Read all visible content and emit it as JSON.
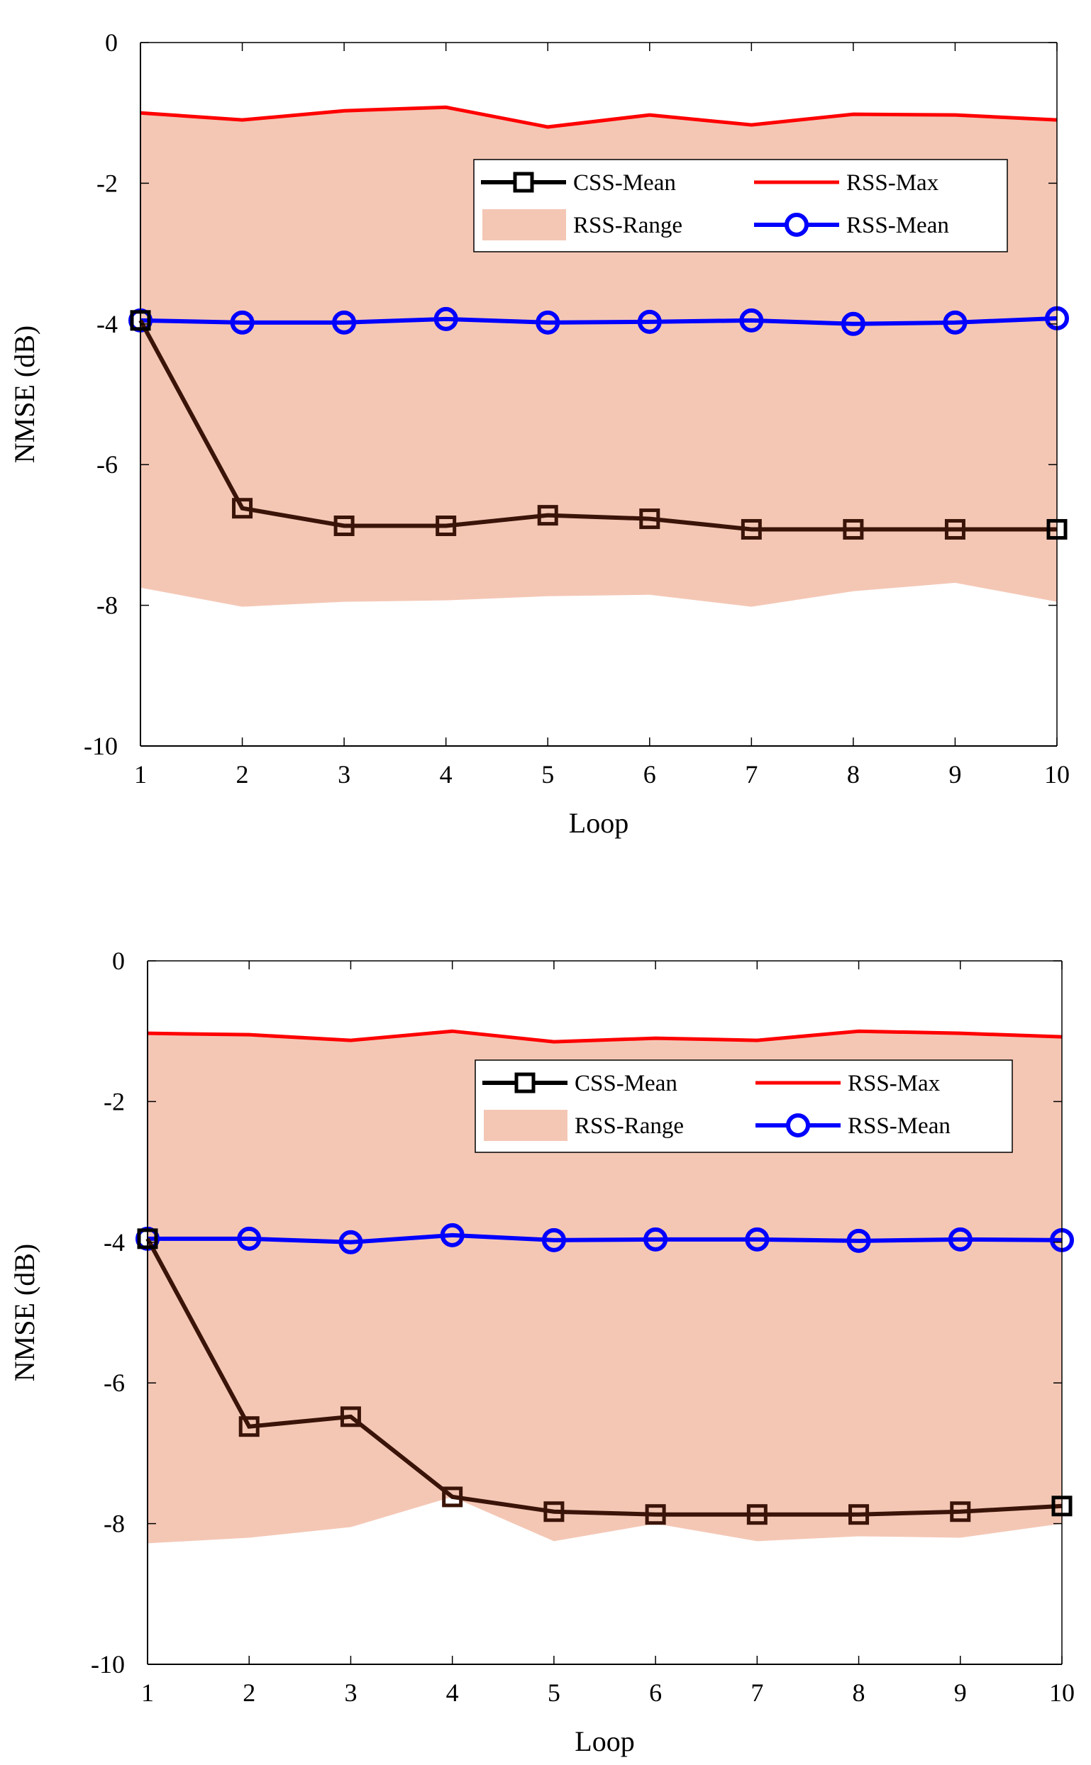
{
  "colors": {
    "range_fill": "#f4c7b5",
    "max_line": "#ff0000",
    "rss_mean": "#0000ff",
    "css_mean": "#3a1408",
    "axis": "#000000"
  },
  "chart_data": [
    {
      "type": "line",
      "xlabel": "Loop",
      "ylabel": "NMSE (dB)",
      "xlim": [
        1,
        10
      ],
      "ylim": [
        -10,
        0
      ],
      "xticks": [
        "1",
        "2",
        "3",
        "4",
        "5",
        "6",
        "7",
        "8",
        "9",
        "10"
      ],
      "yticks": [
        "0",
        "-2",
        "-4",
        "-6",
        "-8",
        "-10"
      ],
      "x": [
        1,
        2,
        3,
        4,
        5,
        6,
        7,
        8,
        9,
        10
      ],
      "legend": {
        "css_mean": "CSS-Mean",
        "rss_max": "RSS-Max",
        "rss_range": "RSS-Range",
        "rss_mean": "RSS-Mean"
      },
      "series": [
        {
          "name": "RSS-Max",
          "key": "rss_max",
          "values": [
            -1.0,
            -1.1,
            -0.97,
            -0.92,
            -1.2,
            -1.03,
            -1.17,
            -1.02,
            -1.03,
            -1.1
          ]
        },
        {
          "name": "RSS-Min",
          "key": "rss_min",
          "values": [
            -7.75,
            -8.02,
            -7.95,
            -7.93,
            -7.87,
            -7.85,
            -8.02,
            -7.8,
            -7.68,
            -7.95
          ]
        },
        {
          "name": "RSS-Mean",
          "key": "rss_mean",
          "values": [
            -3.95,
            -3.98,
            -3.98,
            -3.93,
            -3.98,
            -3.97,
            -3.95,
            -4.0,
            -3.98,
            -3.92
          ]
        },
        {
          "name": "CSS-Mean",
          "key": "css_mean",
          "values": [
            -3.95,
            -6.62,
            -6.87,
            -6.87,
            -6.72,
            -6.77,
            -6.92,
            -6.92,
            -6.92,
            -6.92
          ]
        }
      ]
    },
    {
      "type": "line",
      "xlabel": "Loop",
      "ylabel": "NMSE (dB)",
      "xlim": [
        1,
        10
      ],
      "ylim": [
        -10,
        0
      ],
      "xticks": [
        "1",
        "2",
        "3",
        "4",
        "5",
        "6",
        "7",
        "8",
        "9",
        "10"
      ],
      "yticks": [
        "0",
        "-2",
        "-4",
        "-6",
        "-8",
        "-10"
      ],
      "x": [
        1,
        2,
        3,
        4,
        5,
        6,
        7,
        8,
        9,
        10
      ],
      "legend": {
        "css_mean": "CSS-Mean",
        "rss_max": "RSS-Max",
        "rss_range": "RSS-Range",
        "rss_mean": "RSS-Mean"
      },
      "series": [
        {
          "name": "RSS-Max",
          "key": "rss_max",
          "values": [
            -1.03,
            -1.05,
            -1.13,
            -1.0,
            -1.15,
            -1.1,
            -1.13,
            -1.0,
            -1.03,
            -1.08
          ]
        },
        {
          "name": "RSS-Min",
          "key": "rss_min",
          "values": [
            -8.28,
            -8.2,
            -8.05,
            -7.62,
            -8.25,
            -8.0,
            -8.25,
            -8.18,
            -8.2,
            -8.0
          ]
        },
        {
          "name": "RSS-Mean",
          "key": "rss_mean",
          "values": [
            -3.95,
            -3.95,
            -4.0,
            -3.9,
            -3.97,
            -3.96,
            -3.96,
            -3.98,
            -3.96,
            -3.97
          ]
        },
        {
          "name": "CSS-Mean",
          "key": "css_mean",
          "values": [
            -3.95,
            -6.62,
            -6.48,
            -7.62,
            -7.83,
            -7.87,
            -7.87,
            -7.87,
            -7.83,
            -7.75
          ]
        }
      ]
    }
  ]
}
